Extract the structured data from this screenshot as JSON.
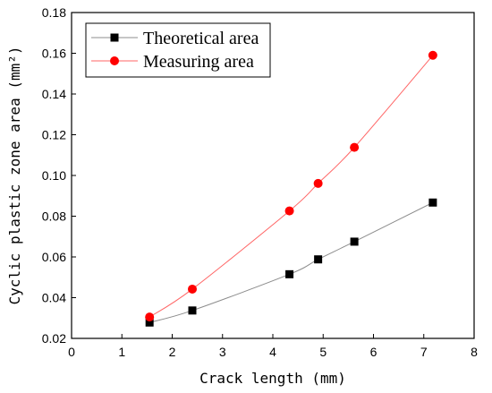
{
  "chart_data": {
    "type": "line",
    "xlabel": "Crack length (mm)",
    "ylabel": "Cyclic plastic zone area (mm²)",
    "xlim": [
      0,
      8
    ],
    "ylim": [
      0.02,
      0.18
    ],
    "x_ticks": [
      "0",
      "1",
      "2",
      "3",
      "4",
      "5",
      "6",
      "7",
      "8"
    ],
    "y_ticks": [
      "0.02",
      "0.04",
      "0.06",
      "0.08",
      "0.10",
      "0.12",
      "0.14",
      "0.16",
      "0.18"
    ],
    "grid": false,
    "legend_position": "top-left",
    "series": [
      {
        "name": "Theoretical area",
        "marker": "square",
        "marker_color": "#000000",
        "line_color": "#8c8c8c",
        "x": [
          1.55,
          2.4,
          4.33,
          4.9,
          5.62,
          7.18
        ],
        "y": [
          0.0278,
          0.0337,
          0.0515,
          0.0588,
          0.0675,
          0.0867
        ]
      },
      {
        "name": "Measuring area",
        "marker": "circle",
        "marker_color": "#ff0000",
        "line_color": "#ff6666",
        "x": [
          1.55,
          2.4,
          4.33,
          4.9,
          5.62,
          7.18
        ],
        "y": [
          0.0305,
          0.0442,
          0.0826,
          0.0961,
          0.1138,
          0.159
        ]
      }
    ]
  }
}
